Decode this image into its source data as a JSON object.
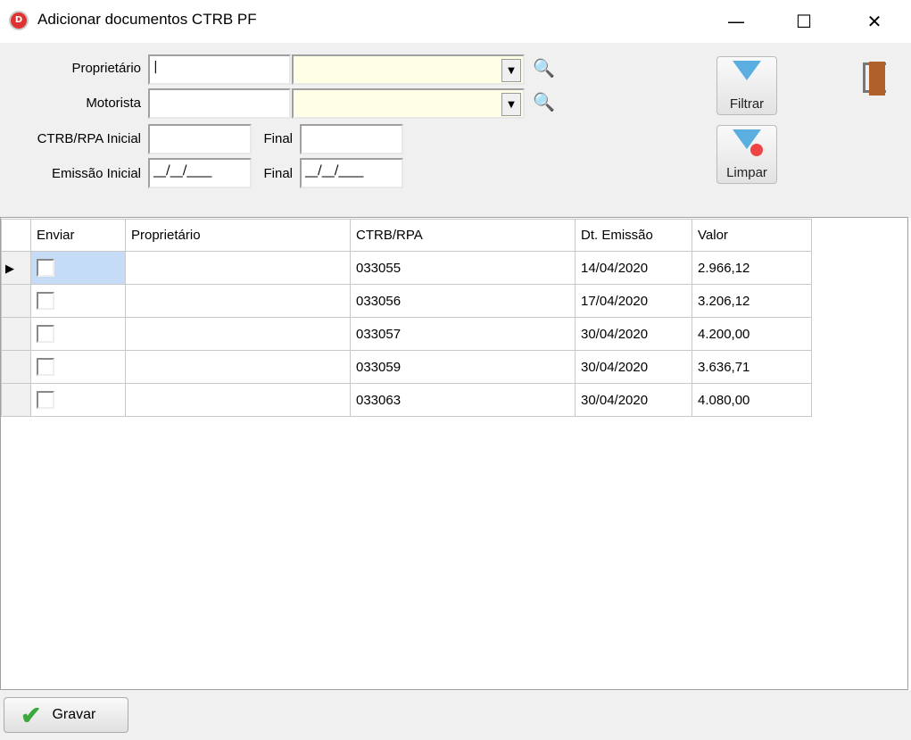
{
  "window": {
    "title": "Adicionar documentos CTRB PF",
    "icon_letter": "D",
    "minimize": "—",
    "maximize": "☐",
    "close": "✕"
  },
  "filters": {
    "proprietario_label": "Proprietário",
    "motorista_label": "Motorista",
    "ctrb_inicial_label": "CTRB/RPA Inicial",
    "ctrb_final_label": "Final",
    "emissao_inicial_label": "Emissão Inicial",
    "emissao_final_label": "Final",
    "emissao_inicial_value": "__/__/____",
    "emissao_final_value": "__/__/____"
  },
  "buttons": {
    "filtrar": "Filtrar",
    "limpar": "Limpar",
    "gravar": "Gravar"
  },
  "grid": {
    "columns": [
      "Enviar",
      "Proprietário",
      "CTRB/RPA",
      "Dt. Emissão",
      "Valor"
    ],
    "rows": [
      {
        "enviar": false,
        "proprietario": "",
        "ctrb": "033055",
        "emissao": "14/04/2020",
        "valor": "2.966,12"
      },
      {
        "enviar": false,
        "proprietario": "",
        "ctrb": "033056",
        "emissao": "17/04/2020",
        "valor": "3.206,12"
      },
      {
        "enviar": false,
        "proprietario": "",
        "ctrb": "033057",
        "emissao": "30/04/2020",
        "valor": "4.200,00"
      },
      {
        "enviar": false,
        "proprietario": "",
        "ctrb": "033059",
        "emissao": "30/04/2020",
        "valor": "3.636,71"
      },
      {
        "enviar": false,
        "proprietario": "",
        "ctrb": "033063",
        "emissao": "30/04/2020",
        "valor": "4.080,00"
      }
    ]
  }
}
